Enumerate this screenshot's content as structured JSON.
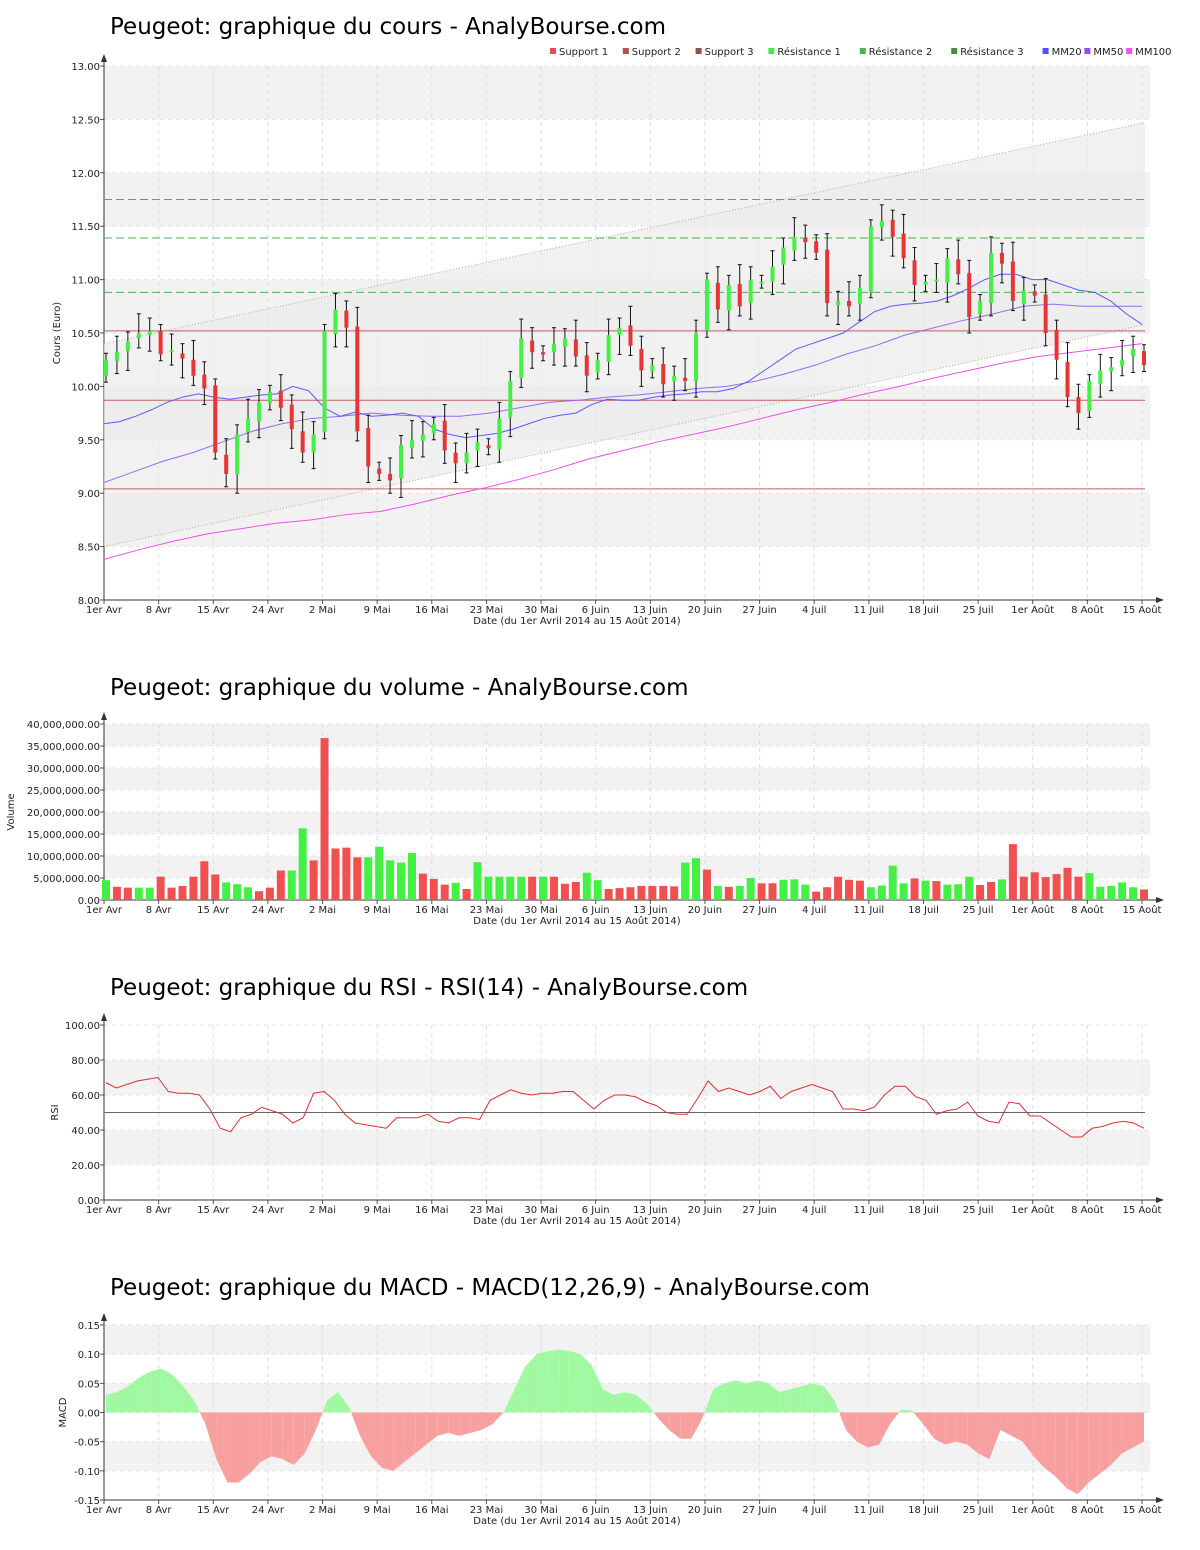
{
  "chart_data": [
    {
      "type": "candlestick",
      "title": "Peugeot: graphique du cours - AnalyBourse.com",
      "ylabel": "Cours (Euro)",
      "xlabel": "Date (du 1er Avril 2014 au 15 Août 2014)",
      "ylim": [
        8.0,
        13.0
      ],
      "yticks": [
        "8.00",
        "8.50",
        "9.00",
        "9.50",
        "10.00",
        "10.50",
        "11.00",
        "11.50",
        "12.00",
        "12.50",
        "13.00"
      ],
      "xticks": [
        "1er Avr",
        "8 Avr",
        "15 Avr",
        "24 Avr",
        "2 Mai",
        "9 Mai",
        "16 Mai",
        "23 Mai",
        "30 Mai",
        "6 Juin",
        "13 Juin",
        "20 Juin",
        "27 Juin",
        "4 Juil",
        "11 Juil",
        "18 Juil",
        "25 Juil",
        "1er Août",
        "8 Août",
        "15 Août"
      ],
      "legend": [
        {
          "name": "Support 1",
          "color": "#e05050"
        },
        {
          "name": "Support 2",
          "color": "#b05050"
        },
        {
          "name": "Support 3",
          "color": "#905050"
        },
        {
          "name": "Résistance 1",
          "color": "#50e050"
        },
        {
          "name": "Résistance 2",
          "color": "#50b050"
        },
        {
          "name": "Résistance 3",
          "color": "#409040"
        },
        {
          "name": "MM20",
          "color": "#5050ff"
        },
        {
          "name": "MM50",
          "color": "#9050ee"
        },
        {
          "name": "MM100",
          "color": "#ee50ee"
        }
      ],
      "support_levels": [
        10.52,
        9.87,
        9.04
      ],
      "resistance_levels": [
        10.88,
        11.39,
        11.75
      ],
      "close": [
        10.25,
        10.32,
        10.42,
        10.5,
        10.52,
        10.3,
        10.34,
        10.26,
        10.1,
        9.98,
        9.38,
        9.18,
        9.55,
        9.7,
        9.85,
        9.95,
        9.8,
        9.6,
        9.38,
        9.55,
        10.52,
        10.72,
        10.55,
        9.58,
        9.25,
        9.18,
        9.12,
        9.45,
        9.5,
        9.55,
        9.65,
        9.4,
        9.28,
        9.38,
        9.48,
        9.42,
        9.7,
        10.05,
        10.45,
        10.32,
        10.3,
        10.4,
        10.45,
        10.28,
        10.1,
        10.25,
        10.48,
        10.55,
        10.38,
        10.15,
        10.2,
        10.02,
        10.1,
        10.05,
        10.5,
        11.0,
        10.72,
        10.95,
        10.75,
        11.0,
        10.98,
        11.12,
        11.3,
        11.4,
        11.35,
        11.25,
        10.78,
        10.8,
        10.75,
        10.92,
        11.5,
        11.55,
        11.4,
        11.2,
        10.95,
        10.98,
        11.0,
        11.2,
        11.05,
        10.65,
        10.8,
        11.25,
        11.15,
        10.8,
        10.9,
        10.85,
        10.5,
        10.25,
        9.9,
        9.75,
        10.05,
        10.15,
        10.18,
        10.25,
        10.35,
        10.2
      ],
      "mm20": [
        9.65,
        9.67,
        9.72,
        9.78,
        9.85,
        9.9,
        9.93,
        9.9,
        9.88,
        9.9,
        9.92,
        9.93,
        10.0,
        9.96,
        9.8,
        9.72,
        9.76,
        9.72,
        9.73,
        9.75,
        9.72,
        9.6,
        9.55,
        9.52,
        9.54,
        9.56,
        9.6,
        9.65,
        9.7,
        9.73,
        9.75,
        9.83,
        9.88,
        9.87,
        9.87,
        9.9,
        9.92,
        9.93,
        9.95,
        9.95,
        9.98,
        10.05,
        10.15,
        10.25,
        10.35,
        10.4,
        10.45,
        10.5,
        10.6,
        10.7,
        10.75,
        10.77,
        10.78,
        10.8,
        10.85,
        10.92,
        11.0,
        11.05,
        11.05,
        11.0,
        11.0,
        10.95,
        10.9,
        10.88,
        10.8,
        10.68,
        10.58
      ],
      "mm20_from_index": 0,
      "mm50": [
        9.1,
        9.2,
        9.3,
        9.38,
        9.48,
        9.58,
        9.65,
        9.7,
        9.72,
        9.75,
        9.73,
        9.72,
        9.72,
        9.75,
        9.8,
        9.85,
        9.87,
        9.9,
        9.92,
        9.95,
        9.98,
        10.0,
        10.05,
        10.12,
        10.2,
        10.3,
        10.38,
        10.48,
        10.55,
        10.62,
        10.68,
        10.75,
        10.77,
        10.75,
        10.75,
        10.75
      ],
      "mm100": [
        8.38,
        8.47,
        8.55,
        8.62,
        8.67,
        8.72,
        8.75,
        8.8,
        8.83,
        8.9,
        8.98,
        9.05,
        9.13,
        9.22,
        9.32,
        9.4,
        9.48,
        9.55,
        9.62,
        9.7,
        9.78,
        9.85,
        9.93,
        10.0,
        10.08,
        10.15,
        10.22,
        10.28,
        10.32,
        10.36,
        10.4
      ]
    },
    {
      "type": "bar",
      "title": "Peugeot: graphique du volume - AnalyBourse.com",
      "ylabel": "Volume",
      "xlabel": "Date (du 1er Avril 2014 au 15 Août 2014)",
      "ylim": [
        0,
        40000000
      ],
      "yticks": [
        "0.00",
        "5,000,000.00",
        "10,000,000.00",
        "15,000,000.00",
        "20,000,000.00",
        "25,000,000.00",
        "30,000,000.00",
        "35,000,000.00",
        "40,000,000.00"
      ],
      "xticks": [
        "1er Avr",
        "8 Avr",
        "15 Avr",
        "24 Avr",
        "2 Mai",
        "9 Mai",
        "16 Mai",
        "23 Mai",
        "30 Mai",
        "6 Juin",
        "13 Juin",
        "20 Juin",
        "27 Juin",
        "4 Juil",
        "11 Juil",
        "18 Juil",
        "25 Juil",
        "1er Août",
        "8 Août",
        "15 Août"
      ],
      "values": [
        4.5,
        3.0,
        2.8,
        2.8,
        2.8,
        5.3,
        2.8,
        3.2,
        5.3,
        8.8,
        5.8,
        4.0,
        3.6,
        2.9,
        2.0,
        2.8,
        6.7,
        6.7,
        16.3,
        9.0,
        36.8,
        11.7,
        11.9,
        9.7,
        9.7,
        12.1,
        9.0,
        8.5,
        10.7,
        6.0,
        4.8,
        3.5,
        3.9,
        2.5,
        8.6,
        5.3,
        5.3,
        5.3,
        5.3,
        5.3,
        5.3,
        5.3,
        3.7,
        4.1,
        6.2,
        4.5,
        2.5,
        2.7,
        2.9,
        3.2,
        3.2,
        3.2,
        3.1,
        8.5,
        9.5,
        6.9,
        3.2,
        3.0,
        3.2,
        5.0,
        3.8,
        3.8,
        4.6,
        4.7,
        3.5,
        1.9,
        2.9,
        5.3,
        4.6,
        4.4,
        2.9,
        3.3,
        7.8,
        3.8,
        4.9,
        4.4,
        4.3,
        3.5,
        3.6,
        5.3,
        3.4,
        4.1,
        4.7,
        12.7,
        5.3,
        6.3,
        5.2,
        5.9,
        7.3,
        5.3,
        6.1,
        3.0,
        3.2,
        4.0,
        2.9,
        2.4
      ],
      "value_unit": "millions",
      "colors": [
        "g",
        "r",
        "r",
        "g",
        "g",
        "r",
        "r",
        "r",
        "r",
        "r",
        "r",
        "g",
        "g",
        "g",
        "r",
        "r",
        "r",
        "g",
        "g",
        "r",
        "r",
        "r",
        "r",
        "r",
        "g",
        "g",
        "g",
        "g",
        "g",
        "r",
        "r",
        "r",
        "g",
        "r",
        "g",
        "g",
        "g",
        "g",
        "g",
        "r",
        "g",
        "r",
        "r",
        "r",
        "g",
        "g",
        "r",
        "r",
        "r",
        "r",
        "r",
        "r",
        "r",
        "g",
        "g",
        "r",
        "g",
        "r",
        "g",
        "g",
        "r",
        "r",
        "g",
        "g",
        "g",
        "r",
        "r",
        "r",
        "r",
        "r",
        "g",
        "g",
        "g",
        "g",
        "r",
        "g",
        "r",
        "g",
        "g",
        "g",
        "r",
        "r",
        "g",
        "r",
        "r",
        "r",
        "r",
        "r",
        "r",
        "r",
        "g",
        "g",
        "g",
        "g",
        "g",
        "r"
      ]
    },
    {
      "type": "line",
      "title": "Peugeot: graphique du RSI - RSI(14) - AnalyBourse.com",
      "ylabel": "RSI",
      "xlabel": "Date (du 1er Avril 2014 au 15 Août 2014)",
      "ylim": [
        0,
        100
      ],
      "yticks": [
        "0.00",
        "20.00",
        "40.00",
        "60.00",
        "80.00",
        "100.00"
      ],
      "xticks": [
        "1er Avr",
        "8 Avr",
        "15 Avr",
        "24 Avr",
        "2 Mai",
        "9 Mai",
        "16 Mai",
        "23 Mai",
        "30 Mai",
        "6 Juin",
        "13 Juin",
        "20 Juin",
        "27 Juin",
        "4 Juil",
        "11 Juil",
        "18 Juil",
        "25 Juil",
        "1er Août",
        "8 Août",
        "15 Août"
      ],
      "reference_line": 50,
      "values": [
        67,
        64,
        66,
        68,
        69,
        70,
        62,
        61,
        61,
        60,
        52,
        41,
        39,
        47,
        49,
        53,
        51,
        49,
        44,
        47,
        61,
        62,
        57,
        49,
        44,
        43,
        42,
        41,
        47,
        47,
        47,
        49,
        45,
        44,
        47,
        47,
        46,
        57,
        60,
        63,
        61,
        60,
        61,
        61,
        62,
        62,
        57,
        52,
        57,
        60,
        60,
        59,
        56,
        54,
        50,
        49,
        49,
        58,
        68,
        62,
        64,
        62,
        60,
        62,
        65,
        58,
        62,
        64,
        66,
        64,
        62,
        52,
        52,
        51,
        53,
        60,
        65,
        65,
        59,
        57,
        49,
        51,
        52,
        56,
        48,
        45,
        44,
        56,
        55,
        48,
        48,
        44,
        40,
        36,
        36,
        41,
        42,
        44,
        45,
        44,
        41
      ]
    },
    {
      "type": "area",
      "title": "Peugeot: graphique du MACD - MACD(12,26,9) - AnalyBourse.com",
      "ylabel": "MACD",
      "xlabel": "Date (du 1er Avril 2014 au 15 Août 2014)",
      "ylim": [
        -0.15,
        0.15
      ],
      "yticks": [
        "-0.15",
        "-0.10",
        "-0.05",
        "0.00",
        "0.05",
        "0.10",
        "0.15"
      ],
      "xticks": [
        "1er Avr",
        "8 Avr",
        "15 Avr",
        "24 Avr",
        "2 Mai",
        "9 Mai",
        "16 Mai",
        "23 Mai",
        "30 Mai",
        "6 Juin",
        "13 Juin",
        "20 Juin",
        "27 Juin",
        "4 Juil",
        "11 Juil",
        "18 Juil",
        "25 Juil",
        "1er Août",
        "8 Août",
        "15 Août"
      ],
      "values": [
        0.03,
        0.035,
        0.045,
        0.06,
        0.07,
        0.075,
        0.065,
        0.045,
        0.02,
        -0.02,
        -0.08,
        -0.12,
        -0.12,
        -0.105,
        -0.085,
        -0.075,
        -0.08,
        -0.09,
        -0.07,
        -0.03,
        0.02,
        0.035,
        0.01,
        -0.04,
        -0.075,
        -0.095,
        -0.1,
        -0.085,
        -0.07,
        -0.055,
        -0.04,
        -0.035,
        -0.04,
        -0.035,
        -0.03,
        -0.02,
        0.0,
        0.04,
        0.08,
        0.1,
        0.105,
        0.108,
        0.105,
        0.1,
        0.08,
        0.04,
        0.03,
        0.035,
        0.03,
        0.015,
        -0.01,
        -0.03,
        -0.045,
        -0.045,
        -0.01,
        0.04,
        0.05,
        0.055,
        0.05,
        0.055,
        0.05,
        0.035,
        0.04,
        0.045,
        0.05,
        0.045,
        0.02,
        -0.03,
        -0.05,
        -0.06,
        -0.055,
        -0.02,
        0.005,
        0.003,
        -0.02,
        -0.045,
        -0.055,
        -0.05,
        -0.055,
        -0.07,
        -0.08,
        -0.03,
        -0.04,
        -0.05,
        -0.075,
        -0.095,
        -0.11,
        -0.13,
        -0.14,
        -0.12,
        -0.105,
        -0.09,
        -0.07,
        -0.06,
        -0.05
      ]
    }
  ]
}
